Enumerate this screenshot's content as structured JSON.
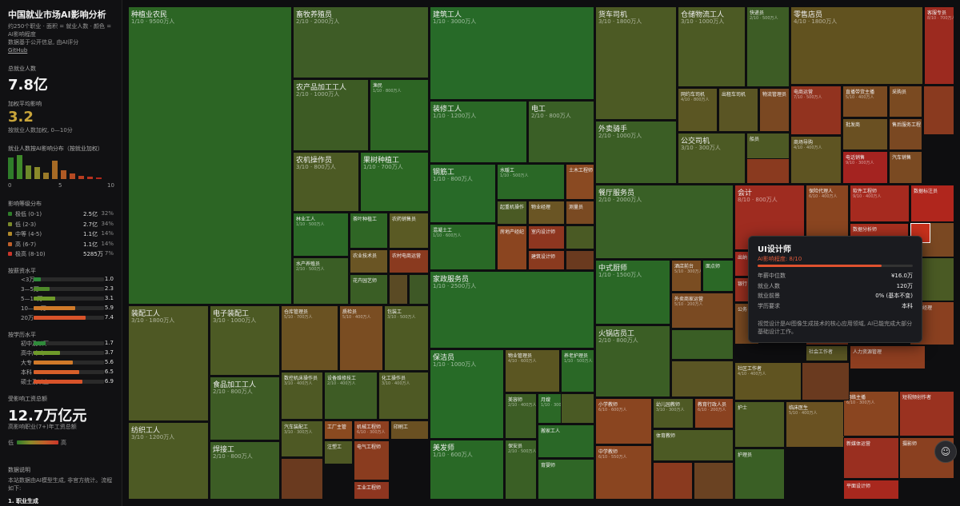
{
  "sidebar": {
    "title": "中国就业市场AI影响分析",
    "subtitle_lines": [
      "约250个职业 · 面积 = 就业人数 · 颜色 =",
      "AI影响程度",
      "数据基于公开信息, 由AI评分"
    ],
    "github_link": "GitHub",
    "total_label": "总就业人数",
    "total_value": "7.8亿",
    "avg_label": "加权平均影响",
    "avg_value": "3.2",
    "avg_note": "按就业人数加权, 0—10分",
    "histogram_label": "就业人数按AI影响分布（按就业加权）",
    "histogram_axis": [
      "0",
      "5",
      "10"
    ],
    "histogram_values": [
      0.9,
      1.0,
      0.55,
      0.5,
      0.25,
      0.75,
      0.38,
      0.22,
      0.12,
      0.1,
      0.05
    ],
    "histogram_colors": [
      "#2f7d2a",
      "#3f8a2a",
      "#6e8a2a",
      "#8b8a2a",
      "#9a7a28",
      "#a56a25",
      "#b05a24",
      "#b54a22",
      "#b83d20",
      "#b8321f",
      "#b0281c"
    ],
    "tier_label": "影响等级分布",
    "tiers": [
      {
        "name": "极低 (0-1)",
        "value": "2.5亿",
        "pct": "32%",
        "color": "#2f7d2a"
      },
      {
        "name": "低 (2-3)",
        "value": "2.7亿",
        "pct": "34%",
        "color": "#7b8a2a"
      },
      {
        "name": "中等 (4-5)",
        "value": "1.1亿",
        "pct": "14%",
        "color": "#b28a2a"
      },
      {
        "name": "高 (6-7)",
        "value": "1.1亿",
        "pct": "14%",
        "color": "#c0602a"
      },
      {
        "name": "极高 (8-10)",
        "value": "5285万",
        "pct": "7%",
        "color": "#c9362a"
      }
    ],
    "salary_label": "按薪资水平",
    "salary_rows": [
      {
        "name": "<3万",
        "value": "1.0",
        "frac": 0.1,
        "color": "#2f8a3a"
      },
      {
        "name": "3—5万",
        "value": "2.3",
        "frac": 0.23,
        "color": "#4f8a2a"
      },
      {
        "name": "5—10万",
        "value": "3.1",
        "frac": 0.31,
        "color": "#6e9a2a"
      },
      {
        "name": "10—20万",
        "value": "5.9",
        "frac": 0.59,
        "color": "#d07a2a"
      },
      {
        "name": "20万+",
        "value": "7.4",
        "frac": 0.74,
        "color": "#d8532a"
      }
    ],
    "edu_label": "按学历水平",
    "edu_rows": [
      {
        "name": "初中及以下",
        "value": "1.7",
        "frac": 0.17,
        "color": "#2f8a3a"
      },
      {
        "name": "高中/中专",
        "value": "3.7",
        "frac": 0.37,
        "color": "#6e9a2a"
      },
      {
        "name": "大专",
        "value": "5.6",
        "frac": 0.56,
        "color": "#d07a2a"
      },
      {
        "name": "本科",
        "value": "6.5",
        "frac": 0.65,
        "color": "#d8602a"
      },
      {
        "name": "硕士及以上",
        "value": "6.9",
        "frac": 0.69,
        "color": "#d8532a"
      }
    ],
    "wage_label": "受影响工资总额",
    "wage_value": "12.7万亿元",
    "wage_note": "高影响职业(7+)年工资总额",
    "legend_low": "低",
    "legend_high": "高",
    "notes_label": "数据说明",
    "notes_text": "本站数据由AI模型生成, 非官方统计。流程如下:",
    "notes_step": "1. 职业生成"
  },
  "tooltip": {
    "title": "UI设计师",
    "level_label": "AI影响程度: 8/10",
    "level_frac": 0.8,
    "rows": [
      {
        "k": "年薪中位数",
        "v": "¥16.0万"
      },
      {
        "k": "就业人数",
        "v": "120万"
      },
      {
        "k": "就业前景",
        "v": "0% (基本不变)"
      },
      {
        "k": "学历要求",
        "v": "本科"
      }
    ],
    "desc": "视觉设计是AI图像生成技术的核心应用领域, AI已能完成大部分基础设计工作。"
  },
  "fab_icon": "chat-bot-icon",
  "tiles": [
    {
      "n": "种植业农民",
      "d": "1/10 · 9500万人",
      "c": "#2c6524"
    },
    {
      "n": "畜牧养殖员",
      "d": "2/10 · 2000万人",
      "c": "#3e5c26"
    },
    {
      "n": "农产品加工工人",
      "d": "2/10 · 1000万人",
      "c": "#3d5b24"
    },
    {
      "n": "渔民",
      "d": "1/10 · 800万人",
      "c": "#2d6524"
    },
    {
      "n": "农机操作员",
      "d": "3/10 · 800万人",
      "c": "#4c5a24"
    },
    {
      "n": "果树种植工",
      "d": "1/10 · 700万人",
      "c": "#2c6824"
    },
    {
      "n": "林业工人",
      "d": "1/10 · 500万人",
      "c": "#2b6826"
    },
    {
      "n": "茶叶种植工",
      "d": "",
      "c": "#2f6625"
    },
    {
      "n": "农药销售员",
      "d": "",
      "c": "#5a5a24"
    },
    {
      "n": "水产养殖员",
      "d": "2/10 · 500万人",
      "c": "#3a5e25"
    },
    {
      "n": "农业技术员",
      "d": "",
      "c": "#6a5524"
    },
    {
      "n": "农村电商运营",
      "d": "",
      "c": "#8a3a1f"
    },
    {
      "n": "花卉园艺师",
      "d": "",
      "c": "#3a5e25"
    },
    {
      "n": "",
      "d": "",
      "c": "#5a4a24"
    },
    {
      "n": "",
      "d": "",
      "c": "#3e5826"
    },
    {
      "n": "建筑工人",
      "d": "1/10 · 3000万人",
      "c": "#276a28"
    },
    {
      "n": "装修工人",
      "d": "1/10 · 1200万人",
      "c": "#2a6826"
    },
    {
      "n": "电工",
      "d": "2/10 · 800万人",
      "c": "#3a5f26"
    },
    {
      "n": "钢筋工",
      "d": "1/10 · 800万人",
      "c": "#286a28"
    },
    {
      "n": "水暖工",
      "d": "1/10 · 500万人",
      "c": "#2a6826"
    },
    {
      "n": "土木工程师",
      "d": "",
      "c": "#8a4a22"
    },
    {
      "n": "起重机操作",
      "d": "",
      "c": "#4a5a24"
    },
    {
      "n": "物业经理",
      "d": "",
      "c": "#6a5524"
    },
    {
      "n": "测量员",
      "d": "",
      "c": "#7a4a22"
    },
    {
      "n": "混凝土工",
      "d": "1/10 · 600万人",
      "c": "#296926"
    },
    {
      "n": "房地产经纪",
      "d": "",
      "c": "#8b4520"
    },
    {
      "n": "室内设计师",
      "d": "",
      "c": "#8e3620"
    },
    {
      "n": "建筑设计师",
      "d": "",
      "c": "#8a3a1f"
    },
    {
      "n": "",
      "d": "",
      "c": "#4a5a24"
    },
    {
      "n": "",
      "d": "",
      "c": "#6a3a1f"
    },
    {
      "n": "家政服务员",
      "d": "1/10 · 2500万人",
      "c": "#286a27"
    },
    {
      "n": "保洁员",
      "d": "1/10 · 1000万人",
      "c": "#276b27"
    },
    {
      "n": "物业管理员",
      "d": "4/10 · 600万人",
      "c": "#5b5622"
    },
    {
      "n": "养老护理员",
      "d": "1/10 · 500万人",
      "c": "#2a6826"
    },
    {
      "n": "美容师",
      "d": "2/10 · 400万人",
      "c": "#3d5d25"
    },
    {
      "n": "月嫂",
      "d": "1/10 · 300万人",
      "c": "#2b6826"
    },
    {
      "n": "美发师",
      "d": "1/10 · 600万人",
      "c": "#296926"
    },
    {
      "n": "保安员",
      "d": "2/10 · 500万人",
      "c": "#3a5f25"
    },
    {
      "n": "搬家工人",
      "d": "",
      "c": "#2a6827"
    },
    {
      "n": "育婴师",
      "d": "",
      "c": "#2f6626"
    },
    {
      "n": "",
      "d": "",
      "c": "#4a5a24"
    },
    {
      "n": "装配工人",
      "d": "3/10 · 1800万人",
      "c": "#4e5824"
    },
    {
      "n": "电子装配工",
      "d": "3/10 · 1000万人",
      "c": "#4c5a24"
    },
    {
      "n": "食品加工工人",
      "d": "2/10 · 800万人",
      "c": "#3e5c25"
    },
    {
      "n": "仓库管理员",
      "d": "5/10 · 700万人",
      "c": "#6a5222"
    },
    {
      "n": "质检员",
      "d": "5/10 · 400万人",
      "c": "#7a4d22"
    },
    {
      "n": "包装工",
      "d": "3/10 · 500万人",
      "c": "#4e5a24"
    },
    {
      "n": "数控机床操作员",
      "d": "3/10 · 400万人",
      "c": "#4e5924"
    },
    {
      "n": "设备维修技工",
      "d": "2/10 · 400万人",
      "c": "#3e5c25"
    },
    {
      "n": "化工操作员",
      "d": "3/10 · 400万人",
      "c": "#4e5924"
    },
    {
      "n": "纺织工人",
      "d": "3/10 · 1200万人",
      "c": "#4d5a24"
    },
    {
      "n": "焊接工",
      "d": "2/10 · 800万人",
      "c": "#3c5d25"
    },
    {
      "n": "汽车装配工",
      "d": "3/10 · 300万人",
      "c": "#4e5924"
    },
    {
      "n": "工厂主管",
      "d": "",
      "c": "#8a4a20"
    },
    {
      "n": "机械工程师",
      "d": "6/10 · 300万人",
      "c": "#8e4020"
    },
    {
      "n": "印刷工",
      "d": "",
      "c": "#6a5022"
    },
    {
      "n": "注塑工",
      "d": "",
      "c": "#4e5824"
    },
    {
      "n": "电气工程师",
      "d": "",
      "c": "#8a3c1f"
    },
    {
      "n": "工业工程师",
      "d": "",
      "c": "#8e3620"
    },
    {
      "n": "",
      "d": "",
      "c": "#6a3a1f"
    },
    {
      "n": "货车司机",
      "d": "3/10 · 1800万人",
      "c": "#4c5a24"
    },
    {
      "n": "仓储物流工人",
      "d": "3/10 · 1000万人",
      "c": "#4c5a24"
    },
    {
      "n": "快递员",
      "d": "2/10 · 500万人",
      "c": "#3d5c25"
    },
    {
      "n": "网约车司机",
      "d": "4/10 · 800万人",
      "c": "#5b5623"
    },
    {
      "n": "出租车司机",
      "d": "",
      "c": "#5a5524"
    },
    {
      "n": "物流管理员",
      "d": "",
      "c": "#7a4822"
    },
    {
      "n": "外卖骑手",
      "d": "2/10 · 1000万人",
      "c": "#3b5e25"
    },
    {
      "n": "公交司机",
      "d": "3/10 · 300万人",
      "c": "#4c5a24"
    },
    {
      "n": "船员",
      "d": "",
      "c": "#4d5924"
    },
    {
      "n": "",
      "d": "",
      "c": "#6a4222"
    },
    {
      "n": "",
      "d": "",
      "c": "#8a3a1f"
    },
    {
      "n": "零售店员",
      "d": "4/10 · 1800万人",
      "c": "#61521f"
    },
    {
      "n": "客服专员",
      "d": "8/10 · 700万人",
      "c": "#9c2a1f"
    },
    {
      "n": "电商运营",
      "d": "7/10 · 500万人",
      "c": "#92331f"
    },
    {
      "n": "直播带货主播",
      "d": "5/10 · 400万人",
      "c": "#7a4a21"
    },
    {
      "n": "采购员",
      "d": "",
      "c": "#7a4a21"
    },
    {
      "n": "商场导购",
      "d": "4/10 · 400万人",
      "c": "#5e5422"
    },
    {
      "n": "批发商",
      "d": "",
      "c": "#6a5022"
    },
    {
      "n": "售后服务工程",
      "d": "",
      "c": "#7a4822"
    },
    {
      "n": "电话销售",
      "d": "9/10 · 300万人",
      "c": "#a42320"
    },
    {
      "n": "汽车销售",
      "d": "",
      "c": "#7a4a22"
    },
    {
      "n": "",
      "d": "",
      "c": "#8a3a1f"
    },
    {
      "n": "餐厅服务员",
      "d": "2/10 · 2000万人",
      "c": "#396026"
    },
    {
      "n": "中式厨师",
      "d": "1/10 · 1500万人",
      "c": "#2a6826"
    },
    {
      "n": "酒店前台",
      "d": "5/10 · 300万人",
      "c": "#7a4d22"
    },
    {
      "n": "面点师",
      "d": "",
      "c": "#2b6826"
    },
    {
      "n": "外卖商家运营",
      "d": "5/10 · 200万人",
      "c": "#7a4a22"
    },
    {
      "n": "火锅店员工",
      "d": "2/10 · 800万人",
      "c": "#3b5e25"
    },
    {
      "n": "",
      "d": "",
      "c": "#3a5e25"
    },
    {
      "n": "",
      "d": "",
      "c": "#5a5524"
    },
    {
      "n": "小学教师",
      "d": "6/10 · 600万人",
      "c": "#8a4520"
    },
    {
      "n": "幼儿园教师",
      "d": "3/10 · 300万人",
      "c": "#4e5924"
    },
    {
      "n": "教育行政人员",
      "d": "6/10 · 200万人",
      "c": "#8a4220"
    },
    {
      "n": "中学教师",
      "d": "6/10 · 550万人",
      "c": "#8a4520"
    },
    {
      "n": "体育教师",
      "d": "",
      "c": "#4c5a24"
    },
    {
      "n": "",
      "d": "",
      "c": "#8a3a1f"
    },
    {
      "n": "",
      "d": "",
      "c": "#6a4222"
    },
    {
      "n": "会计",
      "d": "8/10 · 800万人",
      "c": "#9f2c20"
    },
    {
      "n": "保险代理人",
      "d": "6/10 · 400万人",
      "c": "#8a4520"
    },
    {
      "n": "软件工程师",
      "d": "9/10 · 400万人",
      "c": "#a62a1f"
    },
    {
      "n": "数据标注员",
      "d": "",
      "c": "#b0261d"
    },
    {
      "n": "数据分析师",
      "d": "",
      "c": "#a8301f"
    },
    {
      "n": "出纳",
      "d": "",
      "c": "#a52b20"
    },
    {
      "n": "银行",
      "d": "",
      "c": "#9a3020"
    },
    {
      "n": "公务",
      "d": "",
      "c": "#7a4a22"
    },
    {
      "n": "项目经理",
      "d": "",
      "c": "#8a4020"
    },
    {
      "n": "社会工作者",
      "d": "",
      "c": "#5a5624"
    },
    {
      "n": "社区工作者",
      "d": "4/10 · 400万人",
      "c": "#605421"
    },
    {
      "n": "人力资源管理",
      "d": "",
      "c": "#8e3e20"
    },
    {
      "n": "护士",
      "d": "",
      "c": "#4c5a24"
    },
    {
      "n": "临床医生",
      "d": "5/10 · 400万人",
      "c": "#6a5222"
    },
    {
      "n": "护理员",
      "d": "",
      "c": "#3a5f25"
    },
    {
      "n": "网络主播",
      "d": "6/10 · 300万人",
      "c": "#8a4520"
    },
    {
      "n": "短视频创作者",
      "d": "",
      "c": "#9a3220"
    },
    {
      "n": "新媒体运营",
      "d": "",
      "c": "#9a2f20"
    },
    {
      "n": "摄影师",
      "d": "",
      "c": "#8a4020"
    },
    {
      "n": "平面设计师",
      "d": "",
      "c": "#a8281e"
    },
    {
      "n": "",
      "d": "",
      "c": "#8a3a1f"
    },
    {
      "n": "",
      "d": "",
      "c": "#5a4a24"
    },
    {
      "n": "",
      "d": "",
      "c": "#4a5a24"
    },
    {
      "n": "",
      "d": "",
      "c": "#6a3a1f"
    },
    {
      "n": "",
      "d": "",
      "c": "#7a4822"
    },
    {
      "n": "",
      "d": "",
      "c": "#c8301c"
    }
  ]
}
